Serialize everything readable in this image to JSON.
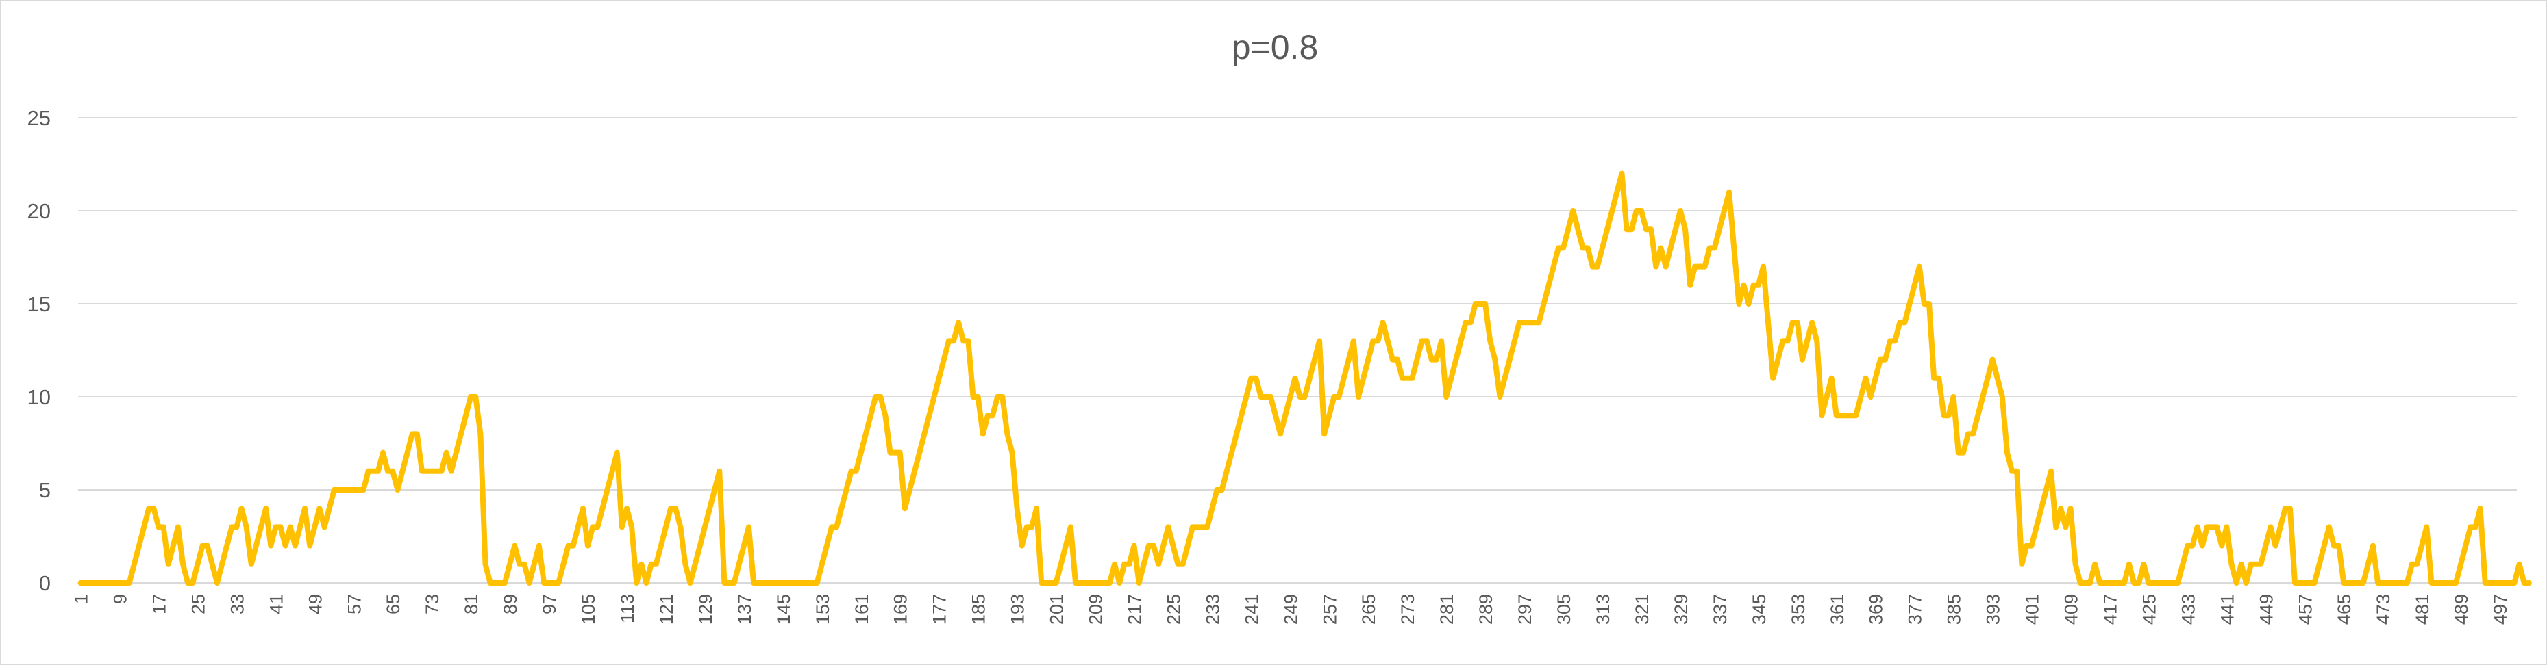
{
  "chart_data": {
    "type": "line",
    "title": "p=0.8",
    "xlabel": "",
    "ylabel": "",
    "ylim": [
      0,
      25
    ],
    "yticks": [
      0,
      5,
      10,
      15,
      20,
      25
    ],
    "grid": true,
    "legend": "none",
    "line_color": "#FFC000",
    "grid_color": "#D9D9D9",
    "text_color": "#595959",
    "x_start": 1,
    "x_end": 500,
    "x_tick_step": 8,
    "series": [
      {
        "values": [
          0,
          0,
          0,
          0,
          0,
          0,
          0,
          0,
          0,
          0,
          0,
          1,
          2,
          3,
          4,
          4,
          3,
          3,
          1,
          2,
          3,
          1,
          0,
          0,
          1,
          2,
          2,
          1,
          0,
          1,
          2,
          3,
          3,
          4,
          3,
          1,
          2,
          3,
          4,
          2,
          3,
          3,
          2,
          3,
          2,
          3,
          4,
          2,
          3,
          4,
          3,
          4,
          5,
          5,
          5,
          5,
          5,
          5,
          5,
          6,
          6,
          6,
          7,
          6,
          6,
          5,
          6,
          7,
          8,
          8,
          6,
          6,
          6,
          6,
          6,
          7,
          6,
          7,
          8,
          9,
          10,
          10,
          8,
          1,
          0,
          0,
          0,
          0,
          1,
          2,
          1,
          1,
          0,
          1,
          2,
          0,
          0,
          0,
          0,
          1,
          2,
          2,
          3,
          4,
          2,
          3,
          3,
          4,
          5,
          6,
          7,
          3,
          4,
          3,
          0,
          1,
          0,
          1,
          1,
          2,
          3,
          4,
          4,
          3,
          1,
          0,
          1,
          2,
          3,
          4,
          5,
          6,
          0,
          0,
          0,
          1,
          2,
          3,
          0,
          0,
          0,
          0,
          0,
          0,
          0,
          0,
          0,
          0,
          0,
          0,
          0,
          0,
          1,
          2,
          3,
          3,
          4,
          5,
          6,
          6,
          7,
          8,
          9,
          10,
          10,
          9,
          7,
          7,
          7,
          4,
          5,
          6,
          7,
          8,
          9,
          10,
          11,
          12,
          13,
          13,
          14,
          13,
          13,
          10,
          10,
          8,
          9,
          9,
          10,
          10,
          8,
          7,
          4,
          2,
          3,
          3,
          4,
          0,
          0,
          0,
          0,
          1,
          2,
          3,
          0,
          0,
          0,
          0,
          0,
          0,
          0,
          0,
          1,
          0,
          1,
          1,
          2,
          0,
          1,
          2,
          2,
          1,
          2,
          3,
          2,
          1,
          1,
          2,
          3,
          3,
          3,
          3,
          4,
          5,
          5,
          6,
          7,
          8,
          9,
          10,
          11,
          11,
          10,
          10,
          10,
          9,
          8,
          9,
          10,
          11,
          10,
          10,
          11,
          12,
          13,
          8,
          9,
          10,
          10,
          11,
          12,
          13,
          10,
          11,
          12,
          13,
          13,
          14,
          13,
          12,
          12,
          11,
          11,
          11,
          12,
          13,
          13,
          12,
          12,
          13,
          10,
          11,
          12,
          13,
          14,
          14,
          15,
          15,
          15,
          13,
          12,
          10,
          11,
          12,
          13,
          14,
          14,
          14,
          14,
          14,
          15,
          16,
          17,
          18,
          18,
          19,
          20,
          19,
          18,
          18,
          17,
          17,
          18,
          19,
          20,
          21,
          22,
          19,
          19,
          20,
          20,
          19,
          19,
          17,
          18,
          17,
          18,
          19,
          20,
          19,
          16,
          17,
          17,
          17,
          18,
          18,
          19,
          20,
          21,
          18,
          15,
          16,
          15,
          16,
          16,
          17,
          14,
          11,
          12,
          13,
          13,
          14,
          14,
          12,
          13,
          14,
          13,
          9,
          10,
          11,
          9,
          9,
          9,
          9,
          9,
          10,
          11,
          10,
          11,
          12,
          12,
          13,
          13,
          14,
          14,
          15,
          16,
          17,
          15,
          15,
          11,
          11,
          9,
          9,
          10,
          7,
          7,
          8,
          8,
          9,
          10,
          11,
          12,
          11,
          10,
          7,
          6,
          6,
          1,
          2,
          2,
          3,
          4,
          5,
          6,
          3,
          4,
          3,
          4,
          1,
          0,
          0,
          0,
          1,
          0,
          0,
          0,
          0,
          0,
          0,
          1,
          0,
          0,
          1,
          0,
          0,
          0,
          0,
          0,
          0,
          0,
          1,
          2,
          2,
          3,
          2,
          3,
          3,
          3,
          2,
          3,
          1,
          0,
          1,
          0,
          1,
          1,
          1,
          2,
          3,
          2,
          3,
          4,
          4,
          0,
          0,
          0,
          0,
          0,
          1,
          2,
          3,
          2,
          2,
          0,
          0,
          0,
          0,
          0,
          1,
          2,
          0,
          0,
          0,
          0,
          0,
          0,
          0,
          1,
          1,
          2,
          3,
          0,
          0,
          0,
          0,
          0,
          0,
          1,
          2,
          3,
          3,
          4,
          0,
          0,
          0,
          0,
          0,
          0,
          0,
          1,
          0,
          0
        ]
      }
    ]
  }
}
